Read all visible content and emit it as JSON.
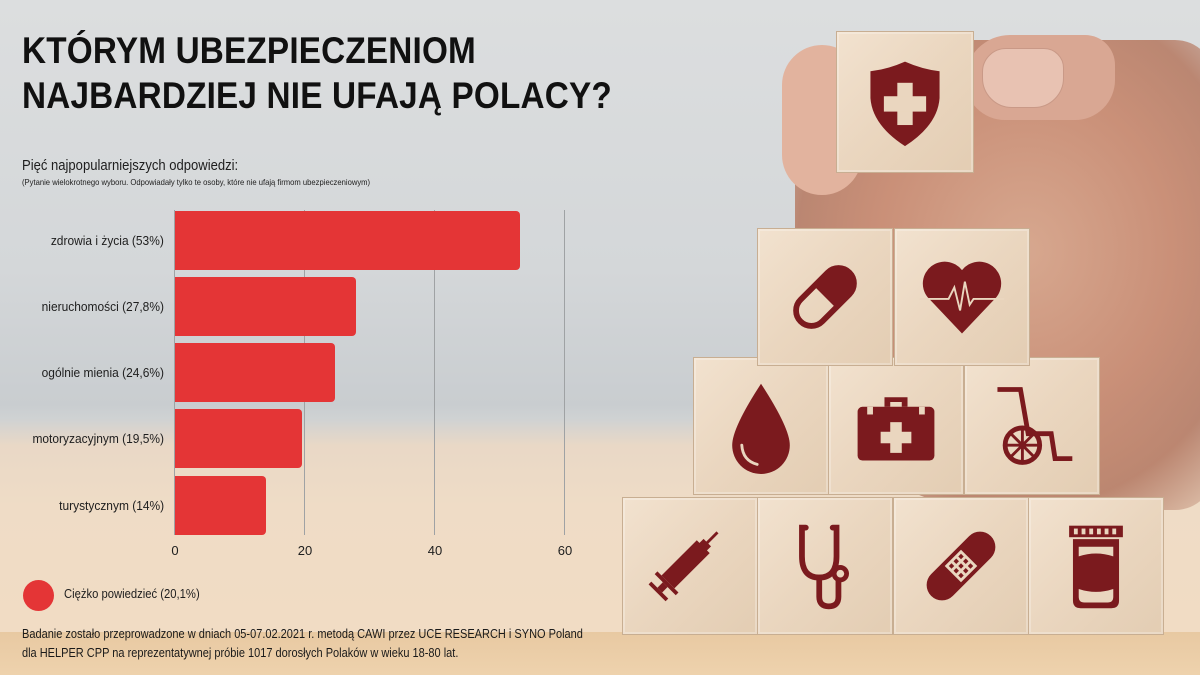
{
  "title": {
    "line1": "KTÓRYM UBEZPIECZENIOM",
    "line2": "NAJBARDZIEJ NIE UFAJĄ POLACY?"
  },
  "subtitle": "Pięć najpopularniejszych odpowiedzi:",
  "note": "(Pytanie wielokrotnego wyboru. Odpowiadały tylko te osoby, które nie ufają firmom ubezpieczeniowym)",
  "chart_data": {
    "type": "bar",
    "orientation": "horizontal",
    "title": "Którym ubezpieczeniom najbardziej nie ufają Polacy?",
    "subtitle": "Pięć najpopularniejszych odpowiedzi:",
    "categories": [
      "zdrowia i życia (53%)",
      "nieruchomości (27,8%)",
      "ogólnie mienia (24,6%)",
      "motoryzacyjnym (19,5%)",
      "turystycznym (14%)"
    ],
    "values": [
      53,
      27.8,
      24.6,
      19.5,
      14
    ],
    "xlabel": "",
    "ylabel": "",
    "xlim": [
      0,
      60
    ],
    "xticks": [
      "0",
      "20",
      "40",
      "60"
    ],
    "grid": true,
    "bar_color": "#e43536",
    "legend": [
      {
        "label": "Ciężko powiedzieć (20,1%)",
        "value": 20.1,
        "color": "#e43536"
      }
    ],
    "legend_position": "bottom-left"
  },
  "legend": {
    "label": "Ciężko powiedzieć (20,1%)"
  },
  "source": {
    "line1": "Badanie zostało przeprowadzone w dniach 05-07.02.2021 r. metodą CAWI przez UCE RESEARCH i SYNO Poland",
    "line2": "dla HELPER CPP na reprezentatywnej próbie 1017 dorosłych Polaków w wieku 18-80 lat."
  },
  "colors": {
    "accent": "#e43536",
    "icon": "#7b1a1e",
    "title": "#111111"
  },
  "blocks": [
    "shield-cross-icon",
    "pill-icon",
    "heart-pulse-icon",
    "blood-drop-icon",
    "first-aid-kit-icon",
    "wheelchair-icon",
    "syringe-icon",
    "stethoscope-icon",
    "bandage-icon",
    "pill-bottle-icon"
  ]
}
